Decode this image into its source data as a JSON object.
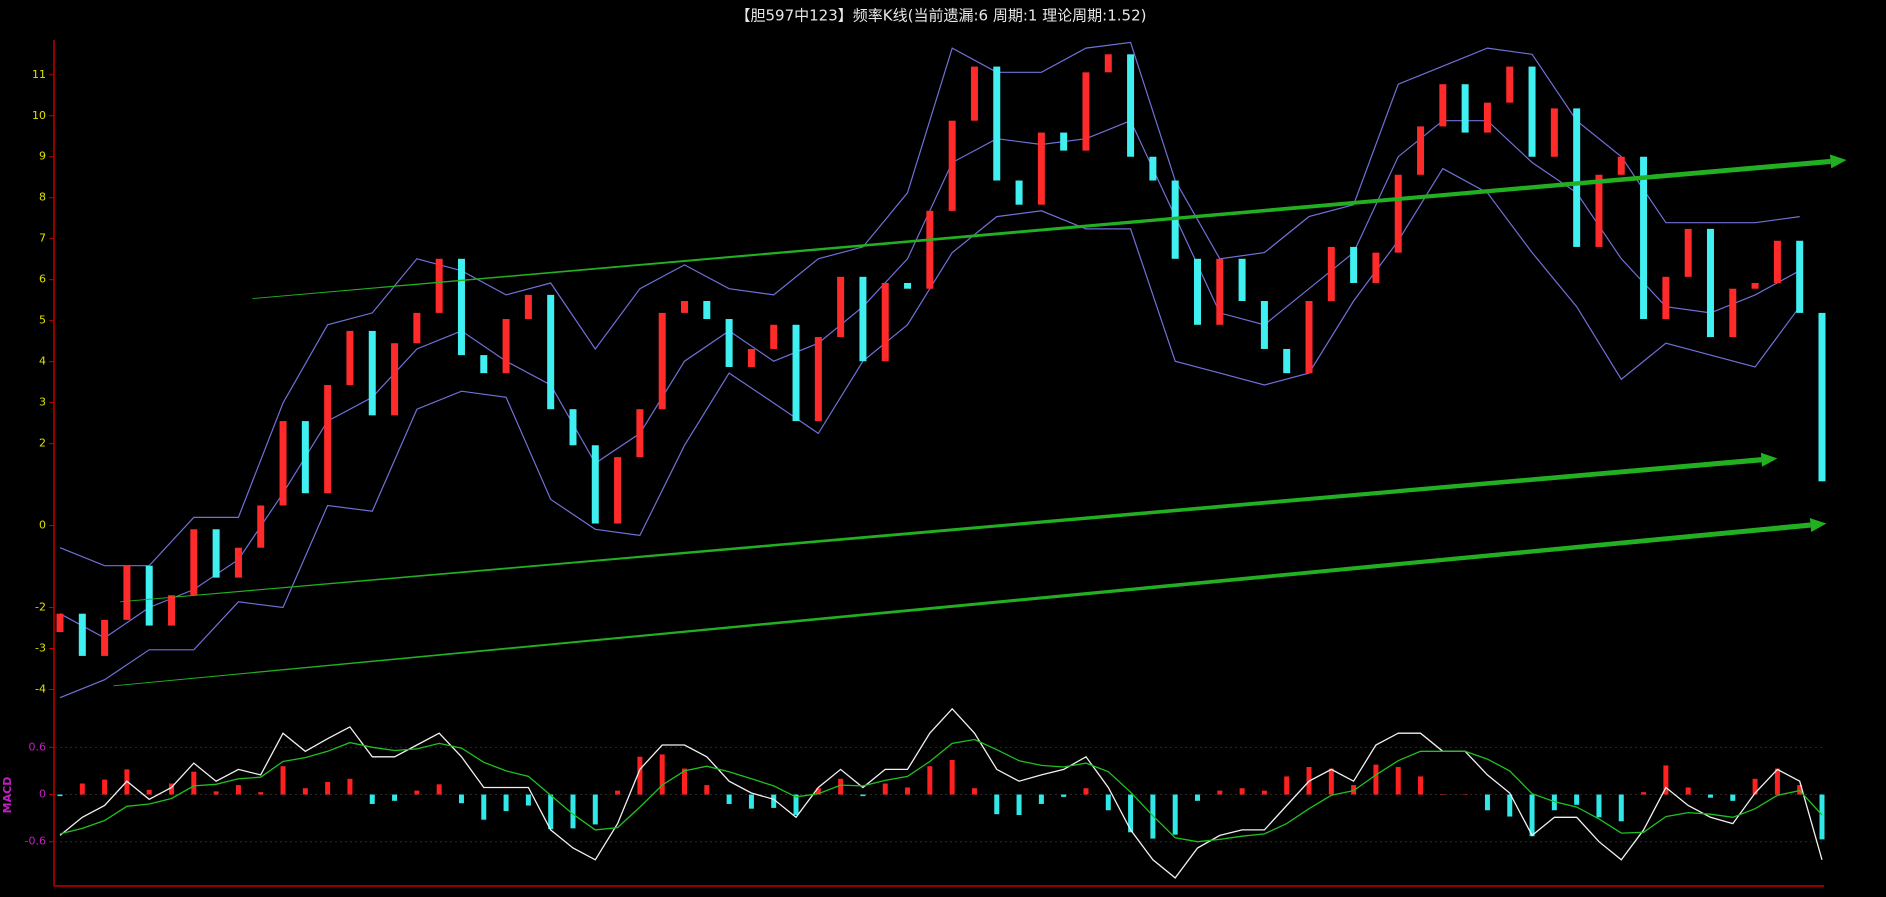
{
  "chart_data": [
    {
      "type": "candlestick",
      "title": "【胆597中123】频率K线(当前遗漏:6 周期:1 理论周期:1.52)",
      "open": [
        -2.6,
        -2.15,
        -3.18,
        -2.3,
        -0.98,
        -2.44,
        -1.7,
        -0.09,
        -1.27,
        -0.54,
        0.49,
        2.55,
        0.79,
        3.43,
        4.75,
        2.69,
        4.45,
        5.19,
        6.51,
        4.16,
        3.72,
        5.04,
        5.63,
        2.84,
        1.96,
        0.05,
        1.67,
        2.84,
        5.19,
        5.48,
        5.04,
        3.87,
        4.31,
        4.9,
        2.55,
        4.6,
        6.07,
        4.01,
        5.92,
        5.78,
        7.68,
        9.88,
        11.2,
        8.42,
        7.83,
        9.59,
        9.15,
        11.06,
        11.5,
        9.0,
        8.42,
        6.51,
        4.9,
        6.51,
        5.48,
        4.31,
        3.72,
        5.48,
        6.8,
        5.92,
        6.66,
        8.56,
        9.74,
        10.77,
        9.59,
        10.32,
        11.2,
        9.0,
        10.18,
        6.8,
        8.56,
        9.0,
        5.04,
        6.07,
        7.24,
        4.6,
        5.78,
        5.92,
        6.95,
        5.19
      ],
      "close": [
        -2.15,
        -3.18,
        -2.3,
        -0.98,
        -2.44,
        -1.7,
        -0.09,
        -1.27,
        -0.54,
        0.49,
        2.55,
        0.79,
        3.43,
        4.75,
        2.69,
        4.45,
        5.19,
        6.51,
        4.16,
        3.72,
        5.04,
        5.63,
        2.84,
        1.96,
        0.05,
        1.67,
        2.84,
        5.19,
        5.48,
        5.04,
        3.87,
        4.31,
        4.9,
        2.55,
        4.6,
        6.07,
        4.01,
        5.92,
        5.78,
        7.68,
        9.88,
        11.2,
        8.42,
        7.83,
        9.59,
        9.15,
        11.06,
        11.5,
        9.0,
        8.42,
        6.51,
        4.9,
        6.51,
        5.48,
        4.31,
        3.72,
        5.48,
        6.8,
        5.92,
        6.66,
        8.56,
        9.74,
        10.77,
        9.59,
        10.32,
        11.2,
        9.0,
        10.18,
        6.8,
        8.56,
        9.0,
        5.04,
        6.07,
        7.24,
        4.6,
        5.78,
        5.92,
        6.95,
        5.19,
        1.08
      ],
      "up_color": "#ff2a2a",
      "down_color": "#40f0f0",
      "ylim": [
        -4.5,
        11.8
      ],
      "yticks": [
        11,
        10,
        9,
        8,
        7,
        6,
        5,
        4,
        3,
        2,
        0,
        -2,
        -3,
        -4
      ],
      "bands": [
        {
          "color": "#7070d8",
          "x": [
            0,
            2,
            4,
            6,
            8,
            10,
            12,
            14,
            16,
            18,
            20,
            22,
            24,
            26,
            28,
            30,
            32,
            34,
            36,
            38,
            40,
            42,
            44,
            46,
            48,
            50,
            52,
            54,
            56,
            58,
            60,
            62,
            64,
            66,
            68,
            70,
            72,
            74,
            76,
            78
          ],
          "values": [
            -0.54,
            -0.98,
            -0.98,
            0.2,
            0.2,
            2.99,
            4.9,
            5.19,
            6.51,
            6.22,
            5.63,
            5.92,
            4.31,
            5.78,
            6.36,
            5.78,
            5.63,
            6.51,
            6.8,
            8.12,
            11.65,
            11.06,
            11.06,
            11.65,
            11.79,
            8.42,
            6.51,
            6.66,
            7.54,
            7.83,
            10.77,
            11.21,
            11.65,
            11.5,
            9.88,
            9.0,
            7.39,
            7.39,
            7.39,
            7.54
          ]
        },
        {
          "color": "#7070d8",
          "x": [
            0,
            2,
            4,
            6,
            8,
            10,
            12,
            14,
            16,
            18,
            20,
            22,
            24,
            26,
            28,
            30,
            32,
            34,
            36,
            38,
            40,
            42,
            44,
            46,
            48,
            50,
            52,
            54,
            56,
            58,
            60,
            62,
            64,
            66,
            68,
            70,
            72,
            74,
            76,
            78
          ],
          "values": [
            -2.15,
            -2.74,
            -2.0,
            -1.56,
            -0.83,
            0.79,
            2.55,
            3.13,
            4.31,
            4.75,
            4.01,
            3.43,
            1.52,
            2.25,
            4.01,
            4.75,
            4.01,
            4.45,
            5.34,
            6.51,
            8.86,
            9.44,
            9.3,
            9.44,
            9.88,
            7.54,
            5.19,
            4.9,
            5.78,
            6.66,
            9.0,
            9.88,
            9.88,
            8.86,
            8.12,
            6.51,
            5.34,
            5.19,
            5.63,
            6.22
          ]
        },
        {
          "color": "#7070d8",
          "x": [
            0,
            2,
            4,
            6,
            8,
            10,
            12,
            14,
            16,
            18,
            20,
            22,
            24,
            26,
            28,
            30,
            32,
            34,
            36,
            38,
            40,
            42,
            44,
            46,
            48,
            50,
            52,
            54,
            56,
            58,
            60,
            62,
            64,
            66,
            68,
            70,
            72,
            74,
            76,
            78
          ],
          "values": [
            -4.2,
            -3.76,
            -3.03,
            -3.03,
            -1.86,
            -2.0,
            0.49,
            0.35,
            2.84,
            3.28,
            3.13,
            0.64,
            -0.09,
            -0.24,
            1.96,
            3.72,
            2.99,
            2.25,
            4.01,
            4.9,
            6.66,
            7.54,
            7.68,
            7.24,
            7.24,
            4.01,
            3.72,
            3.43,
            3.72,
            5.48,
            6.95,
            8.71,
            8.12,
            6.66,
            5.34,
            3.57,
            4.45,
            4.16,
            3.87,
            5.34
          ]
        }
      ],
      "trend_lines": [
        {
          "color": "#22b022",
          "x": [
            8.63,
            80.1
          ],
          "y": [
            5.54,
            8.92
          ]
        },
        {
          "color": "#22b022",
          "x": [
            2.7,
            77.0
          ],
          "y": [
            -1.86,
            1.64
          ]
        },
        {
          "color": "#22b022",
          "x": [
            2.4,
            79.2
          ],
          "y": [
            -3.91,
            0.05
          ]
        }
      ]
    },
    {
      "type": "macd",
      "y_label": "MACD",
      "ylim": [
        -1.15,
        1.1
      ],
      "yticks": [
        0.6,
        0,
        -0.6
      ],
      "series": [
        {
          "color": "#f0f0f0",
          "values": [
            -0.52,
            -0.29,
            -0.14,
            0.17,
            -0.06,
            0.09,
            0.4,
            0.17,
            0.32,
            0.25,
            0.78,
            0.55,
            0.71,
            0.86,
            0.48,
            0.48,
            0.63,
            0.78,
            0.48,
            0.09,
            0.09,
            0.09,
            -0.45,
            -0.68,
            -0.83,
            -0.37,
            0.32,
            0.63,
            0.63,
            0.48,
            0.17,
            0.02,
            -0.06,
            -0.29,
            0.09,
            0.32,
            0.09,
            0.32,
            0.32,
            0.78,
            1.09,
            0.78,
            0.32,
            0.17,
            0.25,
            0.32,
            0.48,
            0.09,
            -0.45,
            -0.83,
            -1.06,
            -0.68,
            -0.52,
            -0.45,
            -0.45,
            -0.14,
            0.17,
            0.32,
            0.17,
            0.63,
            0.78,
            0.78,
            0.55,
            0.55,
            0.25,
            0.02,
            -0.52,
            -0.29,
            -0.29,
            -0.6,
            -0.83,
            -0.45,
            0.09,
            -0.14,
            -0.29,
            -0.37,
            0.02,
            0.32,
            0.17,
            -0.83
          ]
        },
        {
          "color": "#20c020",
          "values": [
            -0.5,
            -0.43,
            -0.33,
            -0.15,
            -0.12,
            -0.05,
            0.11,
            0.13,
            0.2,
            0.22,
            0.42,
            0.47,
            0.55,
            0.66,
            0.6,
            0.56,
            0.58,
            0.65,
            0.59,
            0.41,
            0.3,
            0.23,
            -0.01,
            -0.25,
            -0.45,
            -0.42,
            -0.16,
            0.12,
            0.3,
            0.36,
            0.29,
            0.2,
            0.11,
            -0.03,
            0.01,
            0.12,
            0.11,
            0.18,
            0.23,
            0.42,
            0.65,
            0.7,
            0.57,
            0.43,
            0.37,
            0.35,
            0.4,
            0.29,
            0.03,
            -0.27,
            -0.55,
            -0.6,
            -0.57,
            -0.53,
            -0.5,
            -0.37,
            -0.18,
            -0.01,
            0.05,
            0.25,
            0.43,
            0.55,
            0.55,
            0.55,
            0.45,
            0.3,
            0.01,
            -0.09,
            -0.16,
            -0.31,
            -0.49,
            -0.48,
            -0.28,
            -0.23,
            -0.25,
            -0.29,
            -0.18,
            -0.01,
            0.05,
            -0.26
          ]
        }
      ],
      "histogram": {
        "up_color": "#ff2020",
        "down_color": "#30e8e8",
        "values": [
          -0.02,
          0.14,
          0.19,
          0.32,
          0.06,
          0.14,
          0.29,
          0.04,
          0.12,
          0.03,
          0.36,
          0.08,
          0.16,
          0.2,
          -0.12,
          -0.08,
          0.05,
          0.13,
          -0.11,
          -0.32,
          -0.21,
          -0.14,
          -0.44,
          -0.43,
          -0.38,
          0.05,
          0.48,
          0.51,
          0.33,
          0.12,
          -0.12,
          -0.18,
          -0.17,
          -0.26,
          0.08,
          0.2,
          -0.02,
          0.14,
          0.09,
          0.36,
          0.44,
          0.08,
          -0.25,
          -0.26,
          -0.12,
          -0.03,
          0.08,
          -0.2,
          -0.48,
          -0.56,
          -0.51,
          -0.08,
          0.05,
          0.08,
          0.05,
          0.23,
          0.35,
          0.33,
          0.12,
          0.38,
          0.35,
          0.23,
          0.0,
          0.0,
          -0.2,
          -0.28,
          -0.53,
          -0.2,
          -0.13,
          -0.29,
          -0.34,
          0.03,
          0.37,
          0.09,
          -0.04,
          -0.08,
          0.2,
          0.33,
          0.12,
          -0.57
        ]
      }
    }
  ]
}
